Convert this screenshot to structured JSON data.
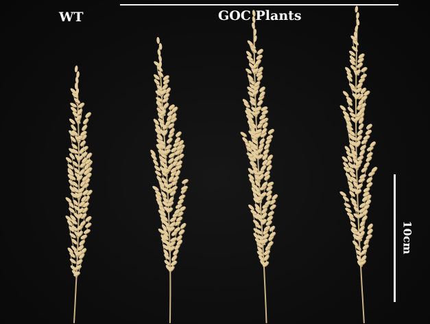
{
  "labels": {
    "wild_type": "WT",
    "transgenic": "GOC Plants"
  },
  "scale_bar": {
    "label": "10cm"
  },
  "colors": {
    "background": "#0c0c0c",
    "grain": "#e3cd9f",
    "grain_shadow": "#b89d6a",
    "stem": "#cbb283",
    "text": "#ffffff"
  },
  "panicles": [
    {
      "group": "WT",
      "icon": "rice-panicle-icon"
    },
    {
      "group": "GOC Plants",
      "icon": "rice-panicle-icon"
    },
    {
      "group": "GOC Plants",
      "icon": "rice-panicle-icon"
    },
    {
      "group": "GOC Plants",
      "icon": "rice-panicle-icon"
    }
  ]
}
